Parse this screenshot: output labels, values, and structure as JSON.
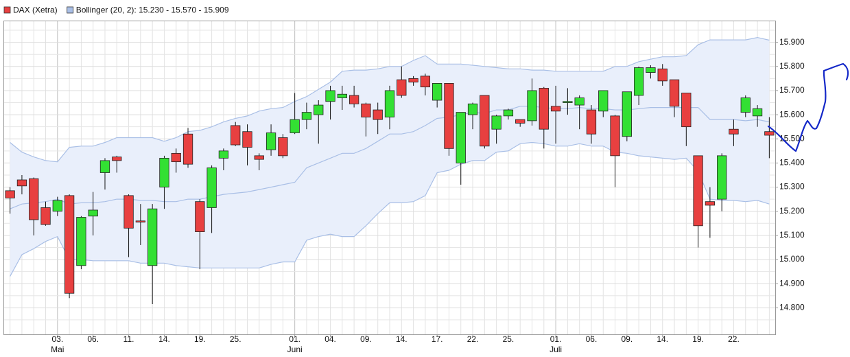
{
  "chart_data": {
    "type": "candlestick",
    "legend": [
      {
        "name": "DAX (Xetra)",
        "color": "#e84040"
      },
      {
        "name": "Bollinger (20, 2): 15.230 - 15.570 - 15.909",
        "color": "#a9bfe6"
      }
    ],
    "categories": [
      null,
      null,
      null,
      null,
      "03.",
      null,
      null,
      "06.",
      null,
      null,
      "11.",
      null,
      null,
      "14.",
      null,
      null,
      "19.",
      null,
      null,
      "25.",
      null,
      null,
      null,
      null,
      "01.",
      null,
      null,
      "04.",
      null,
      null,
      "09.",
      null,
      null,
      "14.",
      null,
      null,
      "17.",
      null,
      null,
      "22.",
      null,
      null,
      "25.",
      null,
      null,
      null,
      "01.",
      null,
      null,
      "06.",
      null,
      null,
      "09.",
      null,
      null,
      "14.",
      null,
      null,
      "19.",
      null,
      null,
      "22.",
      null,
      null,
      null
    ],
    "category_months": [
      null,
      null,
      null,
      null,
      "Mai",
      null,
      null,
      null,
      null,
      null,
      null,
      null,
      null,
      null,
      null,
      null,
      null,
      null,
      null,
      null,
      null,
      null,
      null,
      null,
      "Juni",
      null,
      null,
      null,
      null,
      null,
      null,
      null,
      null,
      null,
      null,
      null,
      null,
      null,
      null,
      null,
      null,
      null,
      null,
      null,
      null,
      null,
      "Juli",
      null,
      null,
      null,
      null,
      null,
      null,
      null,
      null,
      null,
      null,
      null,
      null,
      null,
      null,
      null,
      null,
      null,
      null
    ],
    "up_color": "#33e033",
    "down_color": "#e84040",
    "open": [
      15285,
      15330,
      15335,
      15215,
      15200,
      15265,
      14975,
      15180,
      15360,
      15425,
      15265,
      15160,
      14975,
      15300,
      15440,
      15520,
      15240,
      15215,
      15420,
      15555,
      15530,
      15430,
      15455,
      15505,
      15525,
      15580,
      15600,
      15655,
      15670,
      15680,
      15645,
      15620,
      15590,
      15745,
      15750,
      15760,
      15660,
      15730,
      15400,
      15600,
      15680,
      15540,
      15595,
      15580,
      15575,
      15710,
      15635,
      15650,
      15640,
      15620,
      15615,
      15595,
      15510,
      15680,
      15775,
      15790,
      15745,
      15690,
      15430,
      15240,
      15250,
      15540,
      15610,
      15595,
      15530
    ],
    "high": [
      15300,
      15350,
      15340,
      15240,
      15260,
      15270,
      15180,
      15280,
      15420,
      15430,
      15270,
      15230,
      15230,
      15430,
      15460,
      15545,
      15250,
      15390,
      15460,
      15570,
      15560,
      15440,
      15560,
      15520,
      15690,
      15650,
      15660,
      15720,
      15720,
      15720,
      15650,
      15650,
      15720,
      15800,
      15760,
      15770,
      15730,
      15730,
      15610,
      15650,
      15680,
      15600,
      15625,
      15580,
      15750,
      15715,
      15720,
      15710,
      15680,
      15640,
      15700,
      15600,
      15695,
      15800,
      15805,
      15810,
      15745,
      15690,
      15430,
      15300,
      15440,
      15580,
      15680,
      15640,
      15590
    ],
    "low": [
      15190,
      15270,
      15100,
      15140,
      15180,
      14840,
      14960,
      15100,
      15290,
      15360,
      15010,
      15060,
      14815,
      15210,
      15360,
      15380,
      14960,
      15110,
      15370,
      15470,
      15390,
      15370,
      15430,
      15420,
      15520,
      15540,
      15480,
      15580,
      15620,
      15630,
      15510,
      15520,
      15540,
      15670,
      15720,
      15680,
      15630,
      15430,
      15310,
      15540,
      15460,
      15480,
      15580,
      15550,
      15555,
      15460,
      15480,
      15600,
      15540,
      15480,
      15590,
      15300,
      15490,
      15640,
      15750,
      15720,
      15590,
      15470,
      15050,
      15090,
      15200,
      15470,
      15590,
      15550,
      15420
    ],
    "close": [
      15255,
      15305,
      15165,
      15145,
      15245,
      14860,
      15175,
      15205,
      15410,
      15410,
      15130,
      15155,
      15210,
      15420,
      15405,
      15395,
      15115,
      15380,
      15450,
      15475,
      15465,
      15415,
      15525,
      15430,
      15580,
      15610,
      15640,
      15700,
      15685,
      15645,
      15590,
      15580,
      15700,
      15680,
      15735,
      15715,
      15730,
      15460,
      15610,
      15645,
      15470,
      15595,
      15620,
      15565,
      15700,
      15540,
      15615,
      15655,
      15670,
      15520,
      15700,
      15430,
      15695,
      15795,
      15795,
      15740,
      15635,
      15550,
      15140,
      15225,
      15430,
      15520,
      15670,
      15625,
      15515
    ],
    "band_color": "#a9bfe6",
    "band_fill": "#e9effb",
    "upper": [
      15485,
      15445,
      15425,
      15410,
      15405,
      15465,
      15470,
      15470,
      15485,
      15505,
      15505,
      15505,
      15505,
      15490,
      15505,
      15530,
      15535,
      15550,
      15570,
      15585,
      15595,
      15615,
      15625,
      15630,
      15655,
      15675,
      15705,
      15735,
      15780,
      15785,
      15785,
      15790,
      15800,
      15800,
      15825,
      15845,
      15810,
      15810,
      15810,
      15805,
      15800,
      15795,
      15790,
      15790,
      15785,
      15785,
      15780,
      15780,
      15780,
      15780,
      15780,
      15800,
      15800,
      15820,
      15830,
      15840,
      15840,
      15845,
      15890,
      15910,
      15910,
      15910,
      15910,
      15920,
      15909
    ],
    "middle": [
      15210,
      15230,
      15235,
      15240,
      15250,
      15230,
      15235,
      15235,
      15240,
      15250,
      15250,
      15245,
      15245,
      15240,
      15240,
      15250,
      15250,
      15260,
      15270,
      15275,
      15280,
      15290,
      15300,
      15310,
      15320,
      15380,
      15400,
      15420,
      15440,
      15440,
      15460,
      15490,
      15520,
      15520,
      15530,
      15555,
      15585,
      15590,
      15600,
      15610,
      15605,
      15620,
      15620,
      15635,
      15635,
      15630,
      15625,
      15625,
      15630,
      15625,
      15625,
      15620,
      15620,
      15625,
      15630,
      15630,
      15630,
      15630,
      15630,
      15580,
      15580,
      15580,
      15575,
      15580,
      15570
    ],
    "lower": [
      14930,
      15020,
      15045,
      15075,
      15095,
      15000,
      15000,
      14995,
      14995,
      14995,
      14995,
      14985,
      14985,
      14985,
      14975,
      14970,
      14965,
      14965,
      14965,
      14965,
      14965,
      14965,
      14980,
      14990,
      14990,
      15080,
      15095,
      15105,
      15095,
      15095,
      15140,
      15190,
      15235,
      15235,
      15240,
      15265,
      15360,
      15370,
      15395,
      15410,
      15410,
      15445,
      15450,
      15480,
      15485,
      15480,
      15470,
      15470,
      15480,
      15470,
      15470,
      15445,
      15440,
      15430,
      15425,
      15420,
      15415,
      15420,
      15365,
      15250,
      15245,
      15245,
      15240,
      15245,
      15230
    ],
    "ylim": [
      14690,
      15990
    ],
    "yticks": [
      {
        "value": 14800,
        "label": "14.800"
      },
      {
        "value": 14900,
        "label": "14.900"
      },
      {
        "value": 15000,
        "label": "15.000"
      },
      {
        "value": 15100,
        "label": "15.100"
      },
      {
        "value": 15200,
        "label": "15.200"
      },
      {
        "value": 15300,
        "label": "15.300"
      },
      {
        "value": 15400,
        "label": "15.400"
      },
      {
        "value": 15500,
        "label": "15.500"
      },
      {
        "value": 15600,
        "label": "15.600"
      },
      {
        "value": 15700,
        "label": "15.700"
      },
      {
        "value": 15800,
        "label": "15.800"
      },
      {
        "value": 15900,
        "label": "15.900"
      }
    ],
    "yminor_ticks": [
      14750,
      14850,
      14950,
      15050,
      15150,
      15250,
      15350,
      15450,
      15550,
      15650,
      15750,
      15850,
      15950
    ],
    "grid": true
  }
}
